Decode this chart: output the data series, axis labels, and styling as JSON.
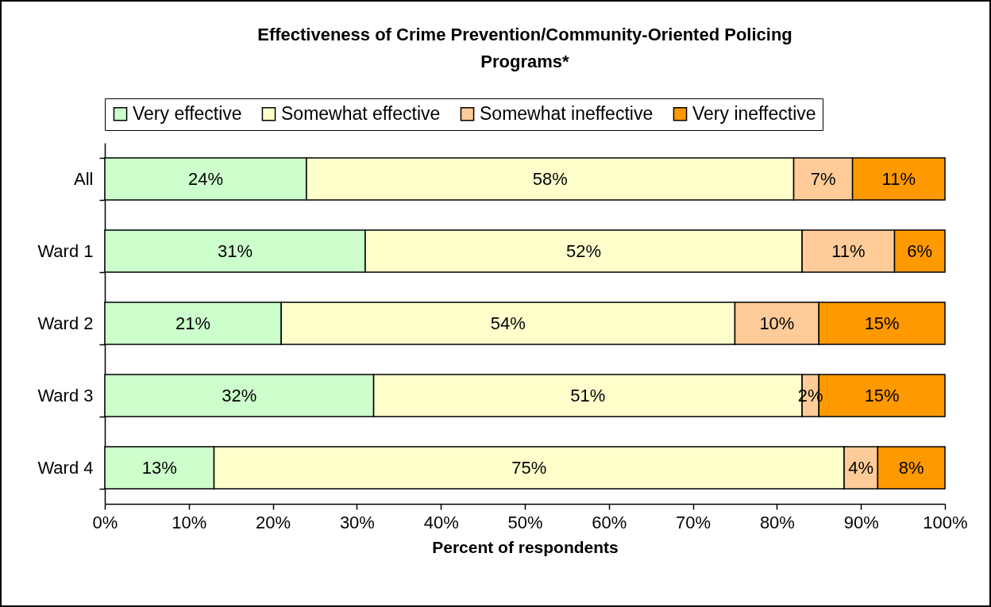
{
  "chart_data": {
    "type": "bar",
    "orientation": "horizontal",
    "stacked": true,
    "title": "Effectiveness of Crime Prevention/Community-Oriented Policing Programs*",
    "xlabel": "Percent of respondents",
    "categories": [
      "All",
      "Ward 1",
      "Ward 2",
      "Ward 3",
      "Ward 4"
    ],
    "series": [
      {
        "name": "Very effective",
        "color": "#ccffcc",
        "values": [
          24,
          31,
          21,
          32,
          13
        ],
        "value_labels": [
          "24%",
          "31%",
          "21%",
          "32%",
          "13%"
        ]
      },
      {
        "name": "Somewhat effective",
        "color": "#ffffcc",
        "values": [
          58,
          52,
          54,
          51,
          75
        ],
        "value_labels": [
          "58%",
          "52%",
          "54%",
          "51%",
          "75%"
        ]
      },
      {
        "name": "Somewhat ineffective",
        "color": "#ffcc99",
        "values": [
          7,
          11,
          10,
          2,
          4
        ],
        "value_labels": [
          "7%",
          "11%",
          "10%",
          "2%",
          "4%"
        ]
      },
      {
        "name": "Very ineffective",
        "color": "#ff9900",
        "values": [
          11,
          6,
          15,
          15,
          8
        ],
        "value_labels": [
          "11%",
          "6%",
          "15%",
          "15%",
          "8%"
        ]
      }
    ],
    "xlim": [
      0,
      100
    ],
    "xticks": [
      {
        "value": 0,
        "label": "0%"
      },
      {
        "value": 10,
        "label": "10%"
      },
      {
        "value": 20,
        "label": "20%"
      },
      {
        "value": 30,
        "label": "30%"
      },
      {
        "value": 40,
        "label": "40%"
      },
      {
        "value": 50,
        "label": "50%"
      },
      {
        "value": 60,
        "label": "60%"
      },
      {
        "value": 70,
        "label": "70%"
      },
      {
        "value": 80,
        "label": "80%"
      },
      {
        "value": 90,
        "label": "90%"
      },
      {
        "value": 100,
        "label": "100%"
      }
    ],
    "legend": "top",
    "grid": false
  }
}
